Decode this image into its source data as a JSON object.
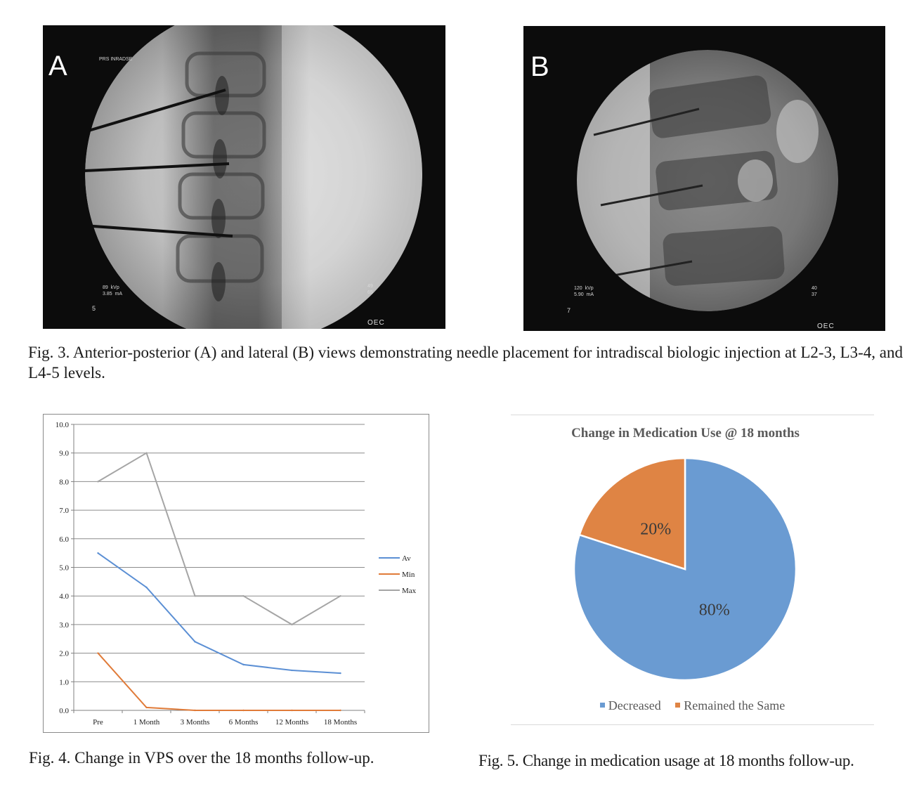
{
  "figure3": {
    "panel_a": {
      "letter": "A",
      "overlay_top": "PRS INRADSE",
      "overlay_settings": "89  kVp\n3.85  mA",
      "overlay_number": "5",
      "overlay_right": "49\n65",
      "brand": "OEC"
    },
    "panel_b": {
      "letter": "B",
      "overlay_settings": "120  kVp\n5.90  mA",
      "overlay_number": "7",
      "overlay_right": "40\n37",
      "brand": "OEC"
    },
    "caption": "Fig. 3. Anterior-posterior (A) and lateral (B) views demonstrating needle placement for intradiscal biologic injection at L2-3, L3-4, and L4-5 levels."
  },
  "figure4": {
    "caption": "Fig. 4. Change in VPS over the 18 months follow-up."
  },
  "figure5": {
    "caption": "Fig. 5. Change in medication usage at 18 months follow-up."
  },
  "chart_data": [
    {
      "type": "line",
      "title": "",
      "xlabel": "",
      "ylabel": "",
      "categories": [
        "Pre",
        "1 Month",
        "3 Months",
        "6 Months",
        "12 Months",
        "18 Months"
      ],
      "series": [
        {
          "name": "Av",
          "values": [
            5.5,
            4.3,
            2.4,
            1.6,
            1.4,
            1.3
          ],
          "color": "#5b8fd4"
        },
        {
          "name": "Min",
          "values": [
            2.0,
            0.1,
            0.0,
            0.0,
            0.0,
            0.0
          ],
          "color": "#e07b39"
        },
        {
          "name": "Max",
          "values": [
            8.0,
            9.0,
            4.0,
            4.0,
            3.0,
            4.0
          ],
          "color": "#a5a5a5"
        }
      ],
      "yticks": [
        "0.0",
        "1.0",
        "2.0",
        "3.0",
        "4.0",
        "5.0",
        "6.0",
        "7.0",
        "8.0",
        "9.0",
        "10.0"
      ],
      "ylim": [
        0,
        10
      ],
      "grid": true,
      "legend": "right"
    },
    {
      "type": "pie",
      "title": "Change in Medication Use @ 18 months",
      "labels": [
        "Decreased",
        "Remained the Same"
      ],
      "values": [
        80,
        20
      ],
      "data_labels": [
        "80%",
        "20%"
      ],
      "colors": [
        "#6a9bd2",
        "#df8444"
      ],
      "legend": "bottom"
    }
  ]
}
